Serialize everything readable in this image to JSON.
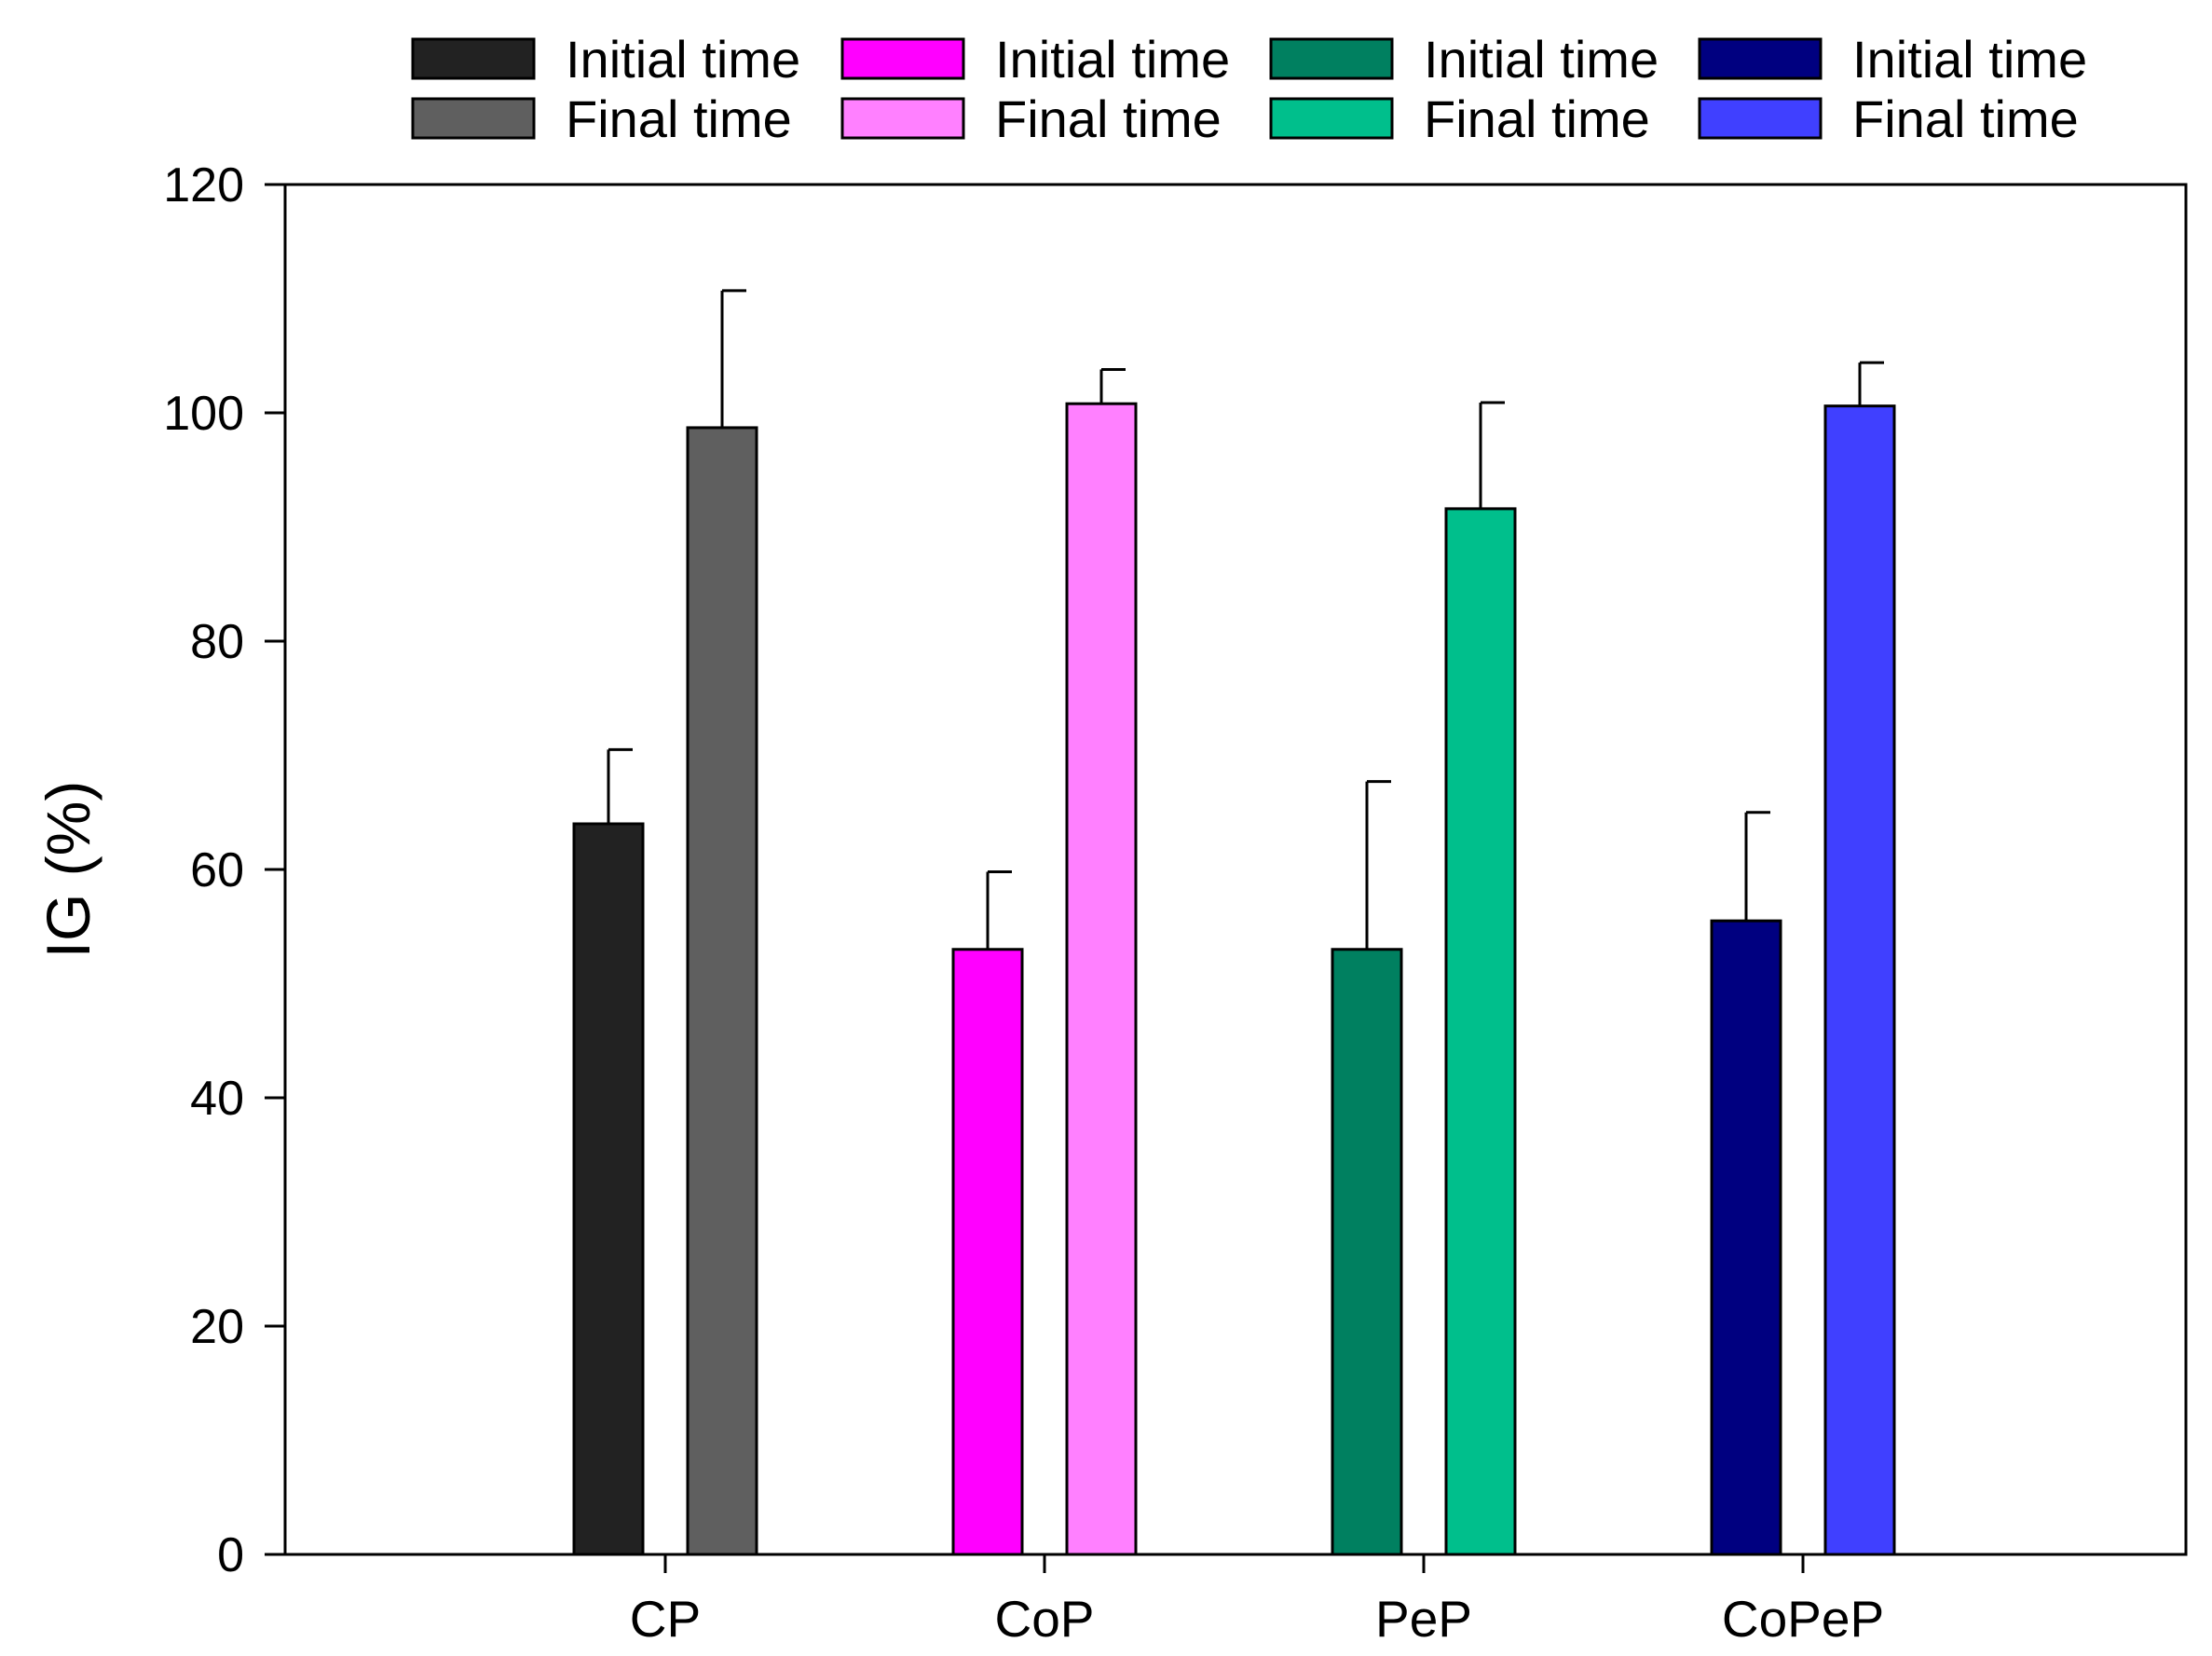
{
  "chart_data": {
    "type": "bar",
    "title": "",
    "xlabel": "",
    "ylabel": "IG (%)",
    "ylim": [
      0,
      120
    ],
    "yticks": [
      0,
      20,
      40,
      60,
      80,
      100,
      120
    ],
    "grid": false,
    "legend_position": "top",
    "categories": [
      "CP",
      "CoP",
      "PeP",
      "CoPeP"
    ],
    "groups": [
      {
        "category": "CP",
        "bars": [
          {
            "series": "Initial time",
            "value": 64,
            "error": 6.5,
            "color": "#222222"
          },
          {
            "series": "Final time",
            "value": 98.7,
            "error": 12,
            "color": "#5f5f5f"
          }
        ]
      },
      {
        "category": "CoP",
        "bars": [
          {
            "series": "Initial time",
            "value": 53,
            "error": 6.8,
            "color": "#ff00ff"
          },
          {
            "series": "Final time",
            "value": 100.8,
            "error": 3,
            "color": "#ff80ff"
          }
        ]
      },
      {
        "category": "PeP",
        "bars": [
          {
            "series": "Initial time",
            "value": 53,
            "error": 14.7,
            "color": "#008060"
          },
          {
            "series": "Final time",
            "value": 91.6,
            "error": 9.3,
            "color": "#00bf8c"
          }
        ]
      },
      {
        "category": "CoPeP",
        "bars": [
          {
            "series": "Initial time",
            "value": 55.5,
            "error": 9.5,
            "color": "#000080"
          },
          {
            "series": "Final time",
            "value": 100.6,
            "error": 3.8,
            "color": "#4040ff"
          }
        ]
      }
    ],
    "legend": [
      [
        {
          "label": "Initial time",
          "color": "#222222"
        },
        {
          "label": "Final time",
          "color": "#5f5f5f"
        }
      ],
      [
        {
          "label": "Initial time",
          "color": "#ff00ff"
        },
        {
          "label": "Final time",
          "color": "#ff80ff"
        }
      ],
      [
        {
          "label": "Initial time",
          "color": "#008060"
        },
        {
          "label": "Final time",
          "color": "#00bf8c"
        }
      ],
      [
        {
          "label": "Initial time",
          "color": "#000080"
        },
        {
          "label": "Final time",
          "color": "#4040ff"
        }
      ]
    ]
  }
}
